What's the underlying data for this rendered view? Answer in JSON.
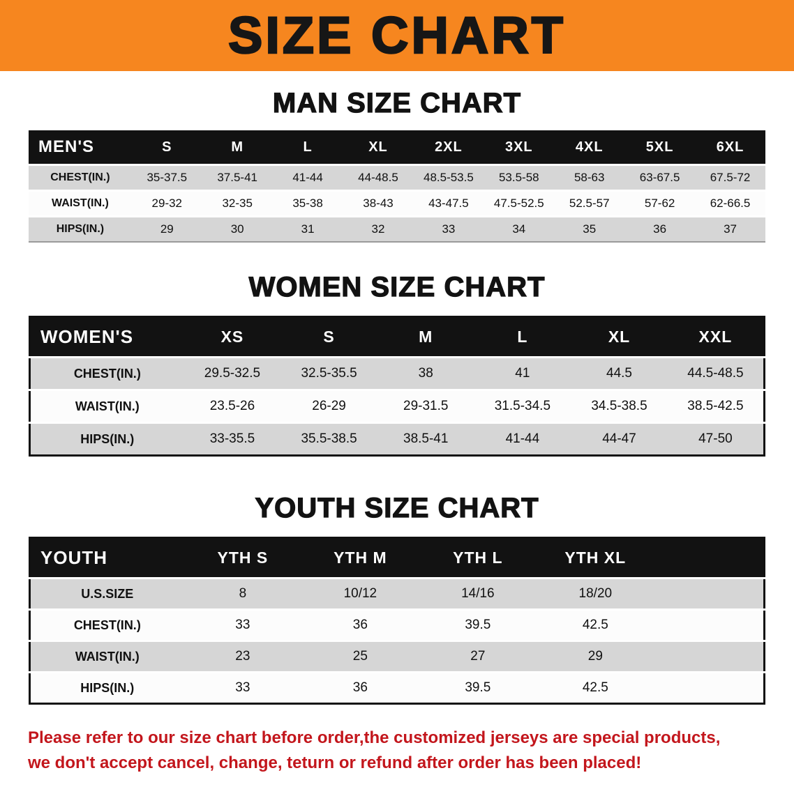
{
  "banner": {
    "title": "SIZE CHART"
  },
  "colors": {
    "banner_bg": "#f6861f",
    "table_header_bg": "#121212",
    "row_shade": "#d6d6d6",
    "note_red": "#c3161c"
  },
  "sections": [
    {
      "heading": "MAN SIZE CHART"
    },
    {
      "heading": "WOMEN SIZE CHART"
    },
    {
      "heading": "YOUTH SIZE CHART"
    }
  ],
  "chart_data": [
    {
      "type": "table",
      "title": "MAN SIZE CHART",
      "columns": [
        "MEN'S",
        "S",
        "M",
        "L",
        "XL",
        "2XL",
        "3XL",
        "4XL",
        "5XL",
        "6XL"
      ],
      "rows": [
        [
          "CHEST(IN.)",
          "35-37.5",
          "37.5-41",
          "41-44",
          "44-48.5",
          "48.5-53.5",
          "53.5-58",
          "58-63",
          "63-67.5",
          "67.5-72"
        ],
        [
          "WAIST(IN.)",
          "29-32",
          "32-35",
          "35-38",
          "38-43",
          "43-47.5",
          "47.5-52.5",
          "52.5-57",
          "57-62",
          "62-66.5"
        ],
        [
          "HIPS(IN.)",
          "29",
          "30",
          "31",
          "32",
          "33",
          "34",
          "35",
          "36",
          "37"
        ]
      ],
      "layout": {
        "header_row": "black",
        "row_shading": "alternate-gray",
        "trailing_filler": false
      }
    },
    {
      "type": "table",
      "title": "WOMEN SIZE CHART",
      "columns": [
        "WOMEN'S",
        "XS",
        "S",
        "M",
        "L",
        "XL",
        "XXL"
      ],
      "rows": [
        [
          "CHEST(IN.)",
          "29.5-32.5",
          "32.5-35.5",
          "38",
          "41",
          "44.5",
          "44.5-48.5"
        ],
        [
          "WAIST(IN.)",
          "23.5-26",
          "26-29",
          "29-31.5",
          "31.5-34.5",
          "34.5-38.5",
          "38.5-42.5"
        ],
        [
          "HIPS(IN.)",
          "33-35.5",
          "35.5-38.5",
          "38.5-41",
          "41-44",
          "44-47",
          "47-50"
        ]
      ],
      "layout": {
        "header_row": "black",
        "row_shading": "alternate-gray",
        "outer_border": true,
        "trailing_filler": false
      }
    },
    {
      "type": "table",
      "title": "YOUTH SIZE CHART",
      "columns": [
        "YOUTH",
        "YTH S",
        "YTH M",
        "YTH L",
        "YTH XL"
      ],
      "rows": [
        [
          "U.S.SIZE",
          "8",
          "10/12",
          "14/16",
          "18/20"
        ],
        [
          "CHEST(IN.)",
          "33",
          "36",
          "39.5",
          "42.5"
        ],
        [
          "WAIST(IN.)",
          "23",
          "25",
          "27",
          "29"
        ],
        [
          "HIPS(IN.)",
          "33",
          "36",
          "39.5",
          "42.5"
        ]
      ],
      "layout": {
        "header_row": "black",
        "row_shading": "alternate-gray",
        "outer_border": true,
        "trailing_filler": true
      }
    }
  ],
  "footer": {
    "lines": [
      "Please refer to our size chart before order,the customized jerseys are special products,",
      "we don't accept cancel, change, teturn or refund after order has been placed!"
    ]
  }
}
